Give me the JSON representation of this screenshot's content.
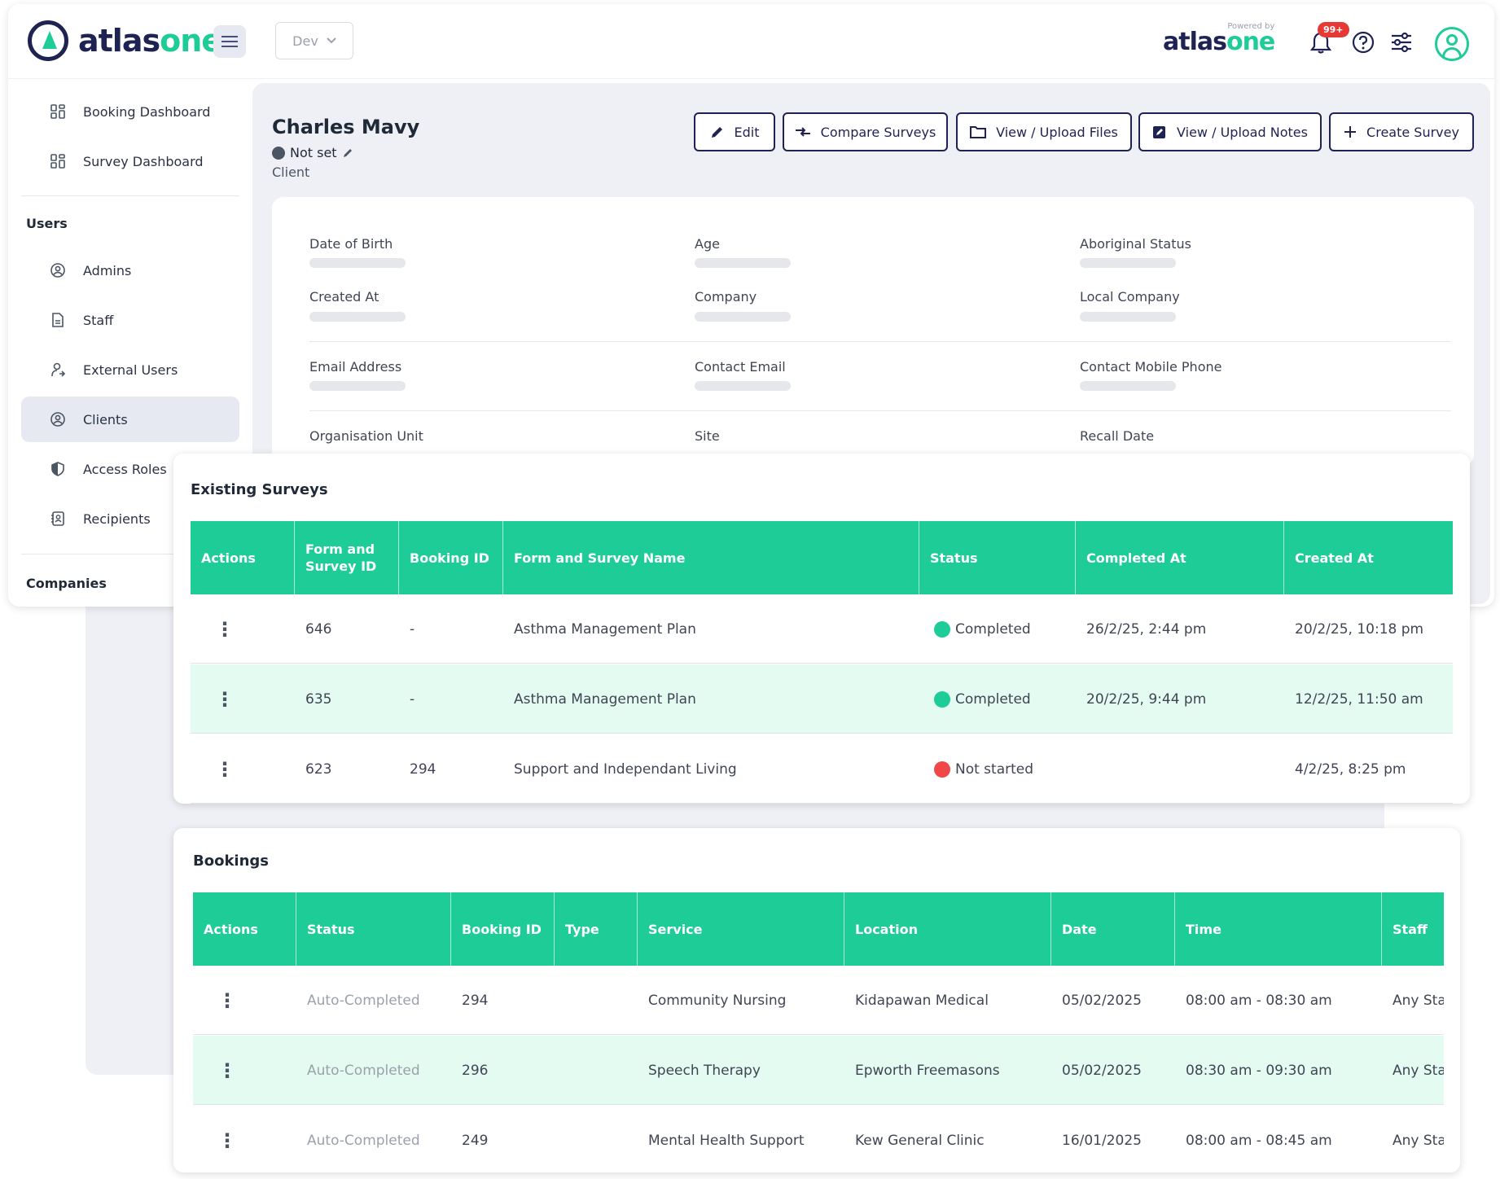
{
  "header": {
    "logo_text_a": "atlas",
    "logo_text_b": "one",
    "env_value": "Dev",
    "powered_label": "Powered by",
    "powered_logo_a": "atlas",
    "powered_logo_b": "one",
    "notifications_badge": "99+",
    "icons": [
      "menu-icon",
      "chevron-down-icon",
      "bell-icon",
      "help-icon",
      "settings-sliders-icon",
      "user-avatar-icon"
    ]
  },
  "sidebar": {
    "items_top": [
      {
        "label": "Booking Dashboard",
        "icon": "grid-icon"
      },
      {
        "label": "Survey Dashboard",
        "icon": "grid-icon"
      }
    ],
    "users_heading": "Users",
    "users_items": [
      {
        "label": "Admins",
        "icon": "user-circle-icon"
      },
      {
        "label": "Staff",
        "icon": "document-icon"
      },
      {
        "label": "External Users",
        "icon": "user-share-icon"
      },
      {
        "label": "Clients",
        "icon": "user-circle-icon",
        "active": true
      },
      {
        "label": "Access Roles",
        "icon": "shield-icon"
      },
      {
        "label": "Recipients",
        "icon": "contact-book-icon"
      }
    ],
    "companies_heading": "Companies"
  },
  "client": {
    "name": "Charles Mavy",
    "status": "Not set",
    "role": "Client"
  },
  "actions": {
    "edit": "Edit",
    "compare": "Compare Surveys",
    "files": "View / Upload Files",
    "notes": "View / Upload Notes",
    "create": "Create Survey"
  },
  "details": {
    "date_of_birth": "Date of Birth",
    "age": "Age",
    "aboriginal_status": "Aboriginal Status",
    "created_at": "Created At",
    "company": "Company",
    "local_company": "Local Company",
    "email_address": "Email Address",
    "contact_email": "Contact Email",
    "contact_mobile": "Contact Mobile Phone",
    "org_unit": "Organisation Unit",
    "site": "Site",
    "recall_date": "Recall Date"
  },
  "surveys": {
    "title": "Existing Surveys",
    "columns": [
      "Actions",
      "Form and Survey ID",
      "Booking ID",
      "Form and Survey Name",
      "Status",
      "Completed At",
      "Created At"
    ],
    "rows": [
      {
        "id": "646",
        "booking": "-",
        "name": "Asthma Management Plan",
        "status": "Completed",
        "status_color": "#1ecc98",
        "completed": "26/2/25, 2:44 pm",
        "created": "20/2/25, 10:18 pm"
      },
      {
        "id": "635",
        "booking": "-",
        "name": "Asthma Management Plan",
        "status": "Completed",
        "status_color": "#1ecc98",
        "completed": "20/2/25, 9:44 pm",
        "created": "12/2/25, 11:50 am"
      },
      {
        "id": "623",
        "booking": "294",
        "name": "Support and Independant Living",
        "status": "Not started",
        "status_color": "#f04848",
        "completed": "",
        "created": "4/2/25, 8:25 pm"
      }
    ]
  },
  "bookings": {
    "title": "Bookings",
    "columns": [
      "Actions",
      "Status",
      "Booking ID",
      "Type",
      "Service",
      "Location",
      "Date",
      "Time",
      "Staff"
    ],
    "rows": [
      {
        "status": "Auto-Completed",
        "id": "294",
        "type": "",
        "service": "Community Nursing",
        "location": "Kidapawan Medical",
        "date": "05/02/2025",
        "time": "08:00 am - 08:30 am",
        "staff": "Any Sta"
      },
      {
        "status": "Auto-Completed",
        "id": "296",
        "type": "",
        "service": "Speech Therapy",
        "location": "Epworth Freemasons",
        "date": "05/02/2025",
        "time": "08:30 am - 09:30 am",
        "staff": "Any Sta"
      },
      {
        "status": "Auto-Completed",
        "id": "249",
        "type": "",
        "service": "Mental Health Support",
        "location": "Kew General Clinic",
        "date": "16/01/2025",
        "time": "08:00 am - 08:45 am",
        "staff": "Any Sta"
      }
    ]
  },
  "colors": {
    "accent": "#1ecc98",
    "navy": "#1e2352",
    "alt_row": "#e3fbf1",
    "danger": "#f04848"
  }
}
